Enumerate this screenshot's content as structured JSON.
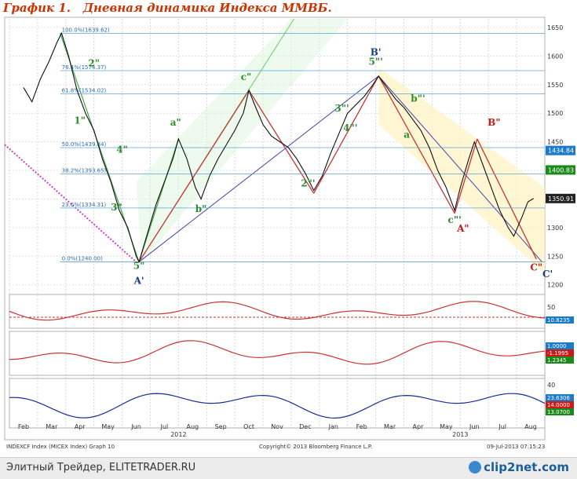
{
  "title": "График 1.   Дневная динамика Индекса ММВБ.",
  "footer": {
    "left_text": "Элитный Трейдер, ELITETRADER.RU",
    "logo_text": "clip2net.com"
  },
  "bottom_info": {
    "left": "INDEXCF Index (MICEX Index) Graph 10",
    "center": "Copyright© 2013 Bloomberg Finance L.P.",
    "right": "09-Jul-2013 07:15:23"
  },
  "chart_data": {
    "type": "line",
    "x_months": [
      "Feb",
      "Mar",
      "Apr",
      "May",
      "Jun",
      "Jul",
      "Aug",
      "Sep",
      "Oct",
      "Nov",
      "Dec",
      "Jan",
      "Feb",
      "Mar",
      "Apr",
      "May",
      "Jun",
      "Jul",
      "Aug"
    ],
    "x_years": [
      {
        "label": "2012",
        "month_index": 5.5
      },
      {
        "label": "2013",
        "month_index": 15.5
      }
    ],
    "ylim": [
      1190,
      1665
    ],
    "yticks": [
      1200,
      1250,
      1300,
      1350,
      1400,
      1450,
      1500,
      1550,
      1600,
      1650
    ],
    "price_series_approx": [
      [
        0,
        1545
      ],
      [
        0.3,
        1520
      ],
      [
        0.6,
        1560
      ],
      [
        0.9,
        1590
      ],
      [
        1.2,
        1625
      ],
      [
        1.35,
        1640
      ],
      [
        1.6,
        1600
      ],
      [
        1.9,
        1540
      ],
      [
        2.2,
        1500
      ],
      [
        2.5,
        1470
      ],
      [
        2.8,
        1420
      ],
      [
        3.1,
        1380
      ],
      [
        3.4,
        1330
      ],
      [
        3.7,
        1300
      ],
      [
        4.0,
        1250
      ],
      [
        4.1,
        1240
      ],
      [
        4.4,
        1290
      ],
      [
        4.7,
        1340
      ],
      [
        5.0,
        1380
      ],
      [
        5.3,
        1420
      ],
      [
        5.5,
        1455
      ],
      [
        5.8,
        1420
      ],
      [
        6.1,
        1370
      ],
      [
        6.3,
        1350
      ],
      [
        6.6,
        1390
      ],
      [
        6.9,
        1420
      ],
      [
        7.2,
        1445
      ],
      [
        7.5,
        1470
      ],
      [
        7.8,
        1500
      ],
      [
        8.0,
        1540
      ],
      [
        8.2,
        1515
      ],
      [
        8.5,
        1480
      ],
      [
        8.8,
        1460
      ],
      [
        9.1,
        1450
      ],
      [
        9.4,
        1440
      ],
      [
        9.7,
        1420
      ],
      [
        10.0,
        1395
      ],
      [
        10.3,
        1365
      ],
      [
        10.6,
        1390
      ],
      [
        10.9,
        1430
      ],
      [
        11.2,
        1465
      ],
      [
        11.5,
        1500
      ],
      [
        11.8,
        1515
      ],
      [
        12.1,
        1530
      ],
      [
        12.4,
        1550
      ],
      [
        12.6,
        1565
      ],
      [
        12.9,
        1545
      ],
      [
        13.2,
        1525
      ],
      [
        13.5,
        1510
      ],
      [
        13.8,
        1490
      ],
      [
        14.1,
        1470
      ],
      [
        14.4,
        1440
      ],
      [
        14.7,
        1400
      ],
      [
        15.0,
        1370
      ],
      [
        15.3,
        1330
      ],
      [
        15.5,
        1370
      ],
      [
        15.8,
        1420
      ],
      [
        16.0,
        1450
      ],
      [
        16.3,
        1410
      ],
      [
        16.6,
        1370
      ],
      [
        16.9,
        1330
      ],
      [
        17.2,
        1300
      ],
      [
        17.4,
        1285
      ],
      [
        17.7,
        1320
      ],
      [
        17.9,
        1345
      ],
      [
        18.1,
        1351
      ]
    ],
    "fibonacci_levels": [
      {
        "label": "100.0%(1639.62)",
        "value": 1639.62
      },
      {
        "label": "76.4%(1574.37)",
        "value": 1574.37
      },
      {
        "label": "61.8%(1534.02)",
        "value": 1534.02
      },
      {
        "label": "50.0%(1439.84)",
        "value": 1439.84
      },
      {
        "label": "38.2%(1393.65)",
        "value": 1393.65
      },
      {
        "label": "23.6%(1334.31)",
        "value": 1334.31
      },
      {
        "label": "0.0%(1240.00)",
        "value": 1240.0
      }
    ],
    "right_labels": [
      {
        "text": "1434.84",
        "value": 1434.84,
        "color": "#1a7acc"
      },
      {
        "text": "1400.83",
        "value": 1400.83,
        "color": "#1a8a1a"
      },
      {
        "text": "1350.91",
        "value": 1350.91,
        "color": "#222222"
      }
    ],
    "wave_labels": [
      {
        "text": "2\"",
        "x": 2.5,
        "y": 1582,
        "color": "#2e8b2e"
      },
      {
        "text": "1\"",
        "x": 2.0,
        "y": 1482,
        "color": "#2e8b2e"
      },
      {
        "text": "4\"",
        "x": 3.5,
        "y": 1431,
        "color": "#2e8b2e"
      },
      {
        "text": "3\"",
        "x": 3.3,
        "y": 1330,
        "color": "#2e8b2e"
      },
      {
        "text": "5\"",
        "x": 4.1,
        "y": 1228,
        "color": "#2e8b2e"
      },
      {
        "text": "A'",
        "x": 4.1,
        "y": 1202,
        "color": "#1a3a8a"
      },
      {
        "text": "a\"",
        "x": 5.4,
        "y": 1478,
        "color": "#2e8b2e"
      },
      {
        "text": "b\"",
        "x": 6.3,
        "y": 1327,
        "color": "#2e8b2e"
      },
      {
        "text": "c\"",
        "x": 7.9,
        "y": 1558,
        "color": "#2e8b2e"
      },
      {
        "text": "2\"'",
        "x": 10.1,
        "y": 1372,
        "color": "#2e8b2e"
      },
      {
        "text": "3\"'",
        "x": 11.3,
        "y": 1503,
        "color": "#2e8b2e"
      },
      {
        "text": "4\"'",
        "x": 11.6,
        "y": 1469,
        "color": "#2e8b2e"
      },
      {
        "text": "5\"'",
        "x": 12.5,
        "y": 1585,
        "color": "#2e8b2e"
      },
      {
        "text": "B'",
        "x": 12.5,
        "y": 1601,
        "color": "#1a3a8a"
      },
      {
        "text": "a",
        "x": 13.6,
        "y": 1457,
        "color": "#2e8b2e"
      },
      {
        "text": "b\"'",
        "x": 14.0,
        "y": 1520,
        "color": "#2e8b2e"
      },
      {
        "text": "c\"'",
        "x": 15.3,
        "y": 1308,
        "color": "#2e8b2e"
      },
      {
        "text": "A\"",
        "x": 15.6,
        "y": 1293,
        "color": "#cc1a1a"
      },
      {
        "text": "B\"",
        "x": 16.7,
        "y": 1478,
        "color": "#cc1a1a"
      },
      {
        "text": "C\"",
        "x": 18.2,
        "y": 1225,
        "color": "#cc1a1a"
      },
      {
        "text": "C'",
        "x": 18.6,
        "y": 1213,
        "color": "#1a3a8a"
      }
    ],
    "osc1": {
      "ylim": [
        -60,
        60
      ],
      "ytick": 50,
      "labels": [
        "10.8235"
      ]
    },
    "osc2": {
      "labels": [
        "1.0000",
        "-1.1995",
        "1.2345"
      ]
    },
    "osc3": {
      "ylim": [
        0,
        50
      ],
      "ytick": 40,
      "labels": [
        "23.6306",
        "14.0000",
        "13.0700"
      ]
    }
  }
}
